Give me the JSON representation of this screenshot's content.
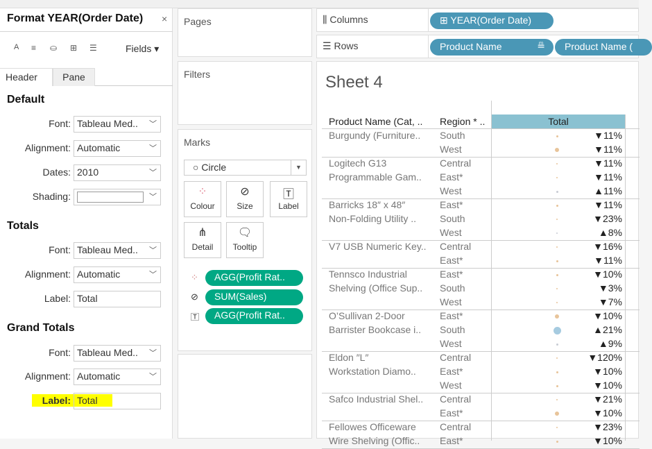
{
  "format_panel": {
    "title": "Format YEAR(Order Date)",
    "close": "×",
    "toolbar": {
      "font_icon": "A",
      "align_icon": "≡",
      "shading_icon": "⛀",
      "borders_icon": "⊞",
      "lines_icon": "☰",
      "fields": "Fields ▾"
    },
    "tabs": [
      "Header",
      "Pane"
    ],
    "default": {
      "heading": "Default",
      "font_label": "Font:",
      "font": "Tableau Med..",
      "alignment_label": "Alignment:",
      "alignment": "Automatic",
      "dates_label": "Dates:",
      "dates": "2010",
      "shading_label": "Shading:"
    },
    "totals": {
      "heading": "Totals",
      "font_label": "Font:",
      "font": "Tableau Med..",
      "alignment_label": "Alignment:",
      "alignment": "Automatic",
      "label_label": "Label:",
      "label": "Total"
    },
    "grand_totals": {
      "heading": "Grand Totals",
      "font_label": "Font:",
      "font": "Tableau Med..",
      "alignment_label": "Alignment:",
      "alignment": "Automatic",
      "label_label": "Label:",
      "label": "Total",
      "highlight_color": "#ffff00"
    }
  },
  "cards": {
    "pages": "Pages",
    "filters": "Filters",
    "marks": "Marks",
    "mark_type": "Circle",
    "buttons": [
      {
        "label": "Colour",
        "icon": "color-icon"
      },
      {
        "label": "Size",
        "icon": "size-icon"
      },
      {
        "label": "Label",
        "icon": "label-icon"
      },
      {
        "label": "Detail",
        "icon": "detail-icon"
      },
      {
        "label": "Tooltip",
        "icon": "tooltip-icon"
      }
    ],
    "pills": [
      {
        "icon": "color-icon",
        "label": "AGG(Profit Rat.."
      },
      {
        "icon": "size-icon",
        "label": "SUM(Sales)"
      },
      {
        "icon": "label-icon",
        "label": "AGG(Profit Rat.."
      }
    ]
  },
  "shelves": {
    "columns": {
      "label": "Columns",
      "pills": [
        "⊞ YEAR(Order Date)"
      ]
    },
    "rows": {
      "label": "Rows",
      "pills": [
        "Product Name",
        "Product Name ("
      ]
    }
  },
  "view": {
    "title": "Sheet 4",
    "headers": [
      "Product Name (Cat, ..",
      "Region * ..",
      "Total"
    ],
    "colors": {
      "negative": "#e8c49a",
      "positive": "#a6cbe0",
      "neutral": "#c8ccd4",
      "header_bg": "#8ac1d1"
    },
    "groups": [
      {
        "name": [
          "Burgundy (Furniture.."
        ],
        "rows": [
          [
            "South",
            "▼11%",
            "negative",
            1
          ],
          [
            "West",
            "▼11%",
            "negative",
            2
          ]
        ]
      },
      {
        "name": [
          "Logitech G13",
          "Programmable Gam.."
        ],
        "rows": [
          [
            "Central",
            "▼11%",
            "negative",
            0
          ],
          [
            "East*",
            "▼11%",
            "negative",
            0
          ],
          [
            "West",
            "▲11%",
            "neutral",
            1
          ]
        ]
      },
      {
        "name": [
          "Barricks 18″ x 48″",
          "Non-Folding Utility .."
        ],
        "rows": [
          [
            "East*",
            "▼11%",
            "negative",
            1
          ],
          [
            "South",
            "▼23%",
            "negative",
            0
          ],
          [
            "West",
            "▲8%",
            "neutral",
            0
          ]
        ]
      },
      {
        "name": [
          "V7 USB Numeric Key.."
        ],
        "rows": [
          [
            "Central",
            "▼16%",
            "negative",
            0
          ],
          [
            "East*",
            "▼11%",
            "negative",
            1
          ]
        ]
      },
      {
        "name": [
          "Tennsco Industrial",
          "Shelving (Office Sup.."
        ],
        "rows": [
          [
            "East*",
            "▼10%",
            "negative",
            1
          ],
          [
            "South",
            "▼3%",
            "negative",
            0
          ],
          [
            "West",
            "▼7%",
            "negative",
            0
          ]
        ]
      },
      {
        "name": [
          "O’Sullivan 2-Door",
          "Barrister Bookcase i.."
        ],
        "rows": [
          [
            "East*",
            "▼10%",
            "negative",
            2
          ],
          [
            "South",
            "▲21%",
            "positive",
            3
          ],
          [
            "West",
            "▲9%",
            "neutral",
            1
          ]
        ]
      },
      {
        "name": [
          "Eldon ″L″",
          "Workstation Diamo.."
        ],
        "rows": [
          [
            "Central",
            "▼120%",
            "negative",
            0
          ],
          [
            "East*",
            "▼10%",
            "negative",
            1
          ],
          [
            "West",
            "▼10%",
            "negative",
            1
          ]
        ]
      },
      {
        "name": [
          "Safco Industrial Shel.."
        ],
        "rows": [
          [
            "Central",
            "▼21%",
            "negative",
            0
          ],
          [
            "East*",
            "▼10%",
            "negative",
            2
          ]
        ]
      },
      {
        "name": [
          "Fellowes Officeware",
          "Wire Shelving (Offic.."
        ],
        "rows": [
          [
            "Central",
            "▼23%",
            "negative",
            0
          ],
          [
            "East*",
            "▼10%",
            "negative",
            1
          ]
        ]
      }
    ]
  }
}
